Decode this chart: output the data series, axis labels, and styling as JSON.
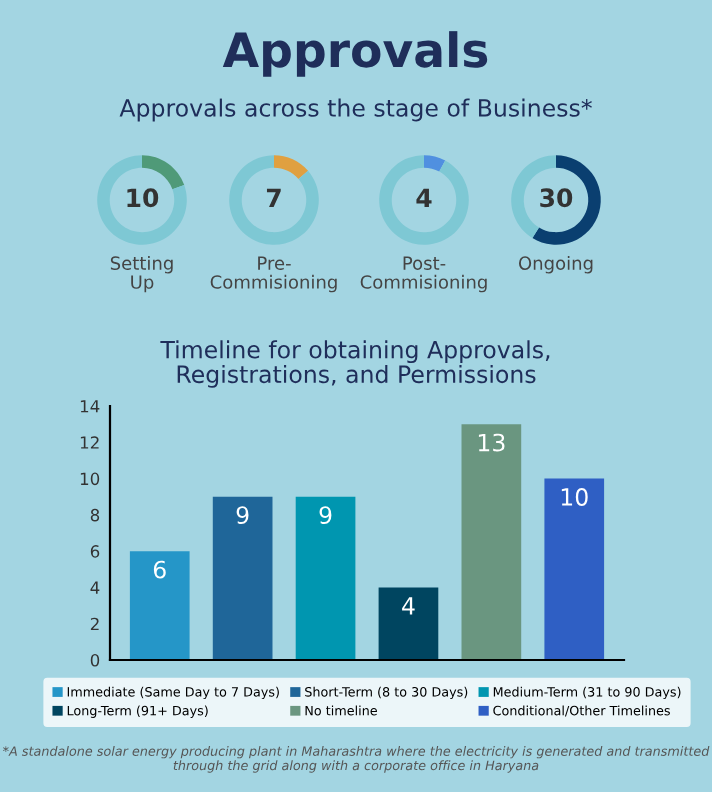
{
  "chart_data": [
    {
      "type": "donut",
      "title": "Approvals",
      "subtitle": "Approvals across the stage of Business*",
      "xlabel": "Setting\nUp",
      "categories": [
        null,
        null
      ],
      "values": [
        10,
        41
      ],
      "colors": [
        "#4f9a78",
        "#7ec8d4"
      ],
      "value_labels": [
        "10",
        null
      ]
    },
    {
      "type": "donut",
      "xlabel": "Pre-\nCommisioning",
      "categories": [
        null,
        null
      ],
      "values": [
        7,
        44
      ],
      "colors": [
        "#e0a040",
        "#7ec8d4"
      ],
      "value_labels": [
        "7",
        null
      ]
    },
    {
      "type": "donut",
      "xlabel": "Post-\nCommisioning",
      "categories": [
        null,
        null
      ],
      "values": [
        4,
        47
      ],
      "colors": [
        "#5090e0",
        "#7ec8d4"
      ],
      "value_labels": [
        "4",
        null
      ]
    },
    {
      "type": "donut",
      "xlabel": "Ongoing",
      "categories": [
        null,
        null
      ],
      "values": [
        30,
        21
      ],
      "colors": [
        "#0a3f70",
        "#7ec8d4"
      ],
      "value_labels": [
        "30",
        null
      ]
    },
    {
      "type": "bar",
      "title": "Timeline for obtaining Approvals,\nRegistrations, and Permissions",
      "categories": [
        null,
        null,
        null,
        null,
        null,
        null
      ],
      "series": [
        {
          "name": "Immediate (Same Day to 7 Days)",
          "color": "#2596c8",
          "values": [
            6,
            null,
            null,
            null,
            null,
            null
          ]
        },
        {
          "name": "Short-Term (8 to 30 Days)",
          "color": "#1f6699",
          "values": [
            null,
            9,
            null,
            null,
            null,
            null
          ]
        },
        {
          "name": "Medium-Term (31 to 90 Days)",
          "color": "#0096b0",
          "values": [
            null,
            null,
            9,
            null,
            null,
            null
          ]
        },
        {
          "name": "Long-Term (91+ Days)",
          "color": "#004560",
          "values": [
            null,
            null,
            null,
            4,
            null,
            null
          ]
        },
        {
          "name": "No timeline",
          "color": "#6a9680",
          "values": [
            null,
            null,
            null,
            null,
            13,
            null
          ]
        },
        {
          "name": "Conditional/Other Timelines",
          "color": "#2f5fc4",
          "values": [
            null,
            null,
            null,
            null,
            null,
            10
          ]
        }
      ],
      "data_labels": true,
      "ylim": [
        0,
        14
      ],
      "yticks": [
        0,
        2,
        4,
        6,
        8,
        10,
        12,
        14
      ],
      "tick_labels": "y",
      "legend": "bottom",
      "annotations": [
        "*A standalone solar energy producing plant in Maharashtra where the electricity is generated and transmitted through the grid along with a corporate office in Haryana"
      ]
    }
  ]
}
